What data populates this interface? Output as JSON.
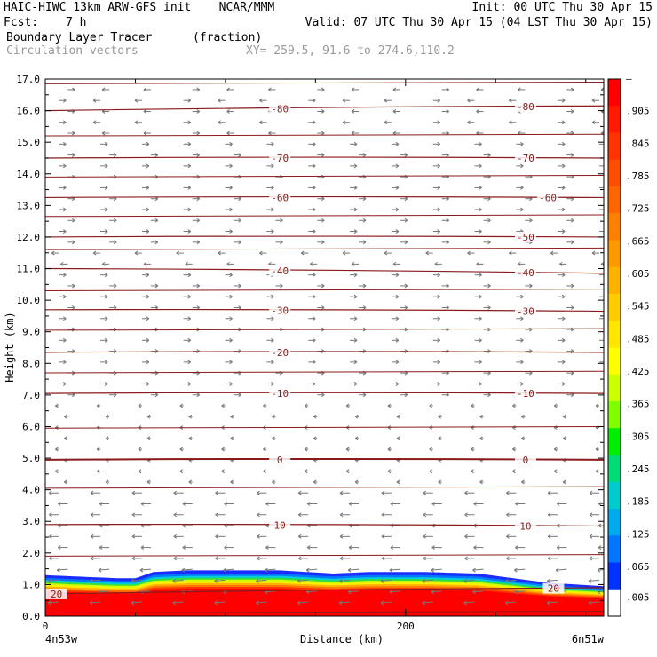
{
  "header": {
    "line1_left": "HAIC-HIWC 13km ARW-GFS init    NCAR/MMM",
    "line1_right": "Init: 00 UTC Thu 30 Apr 15",
    "line2_left_label": "Fcst:",
    "line2_left_value": "7 h",
    "line2_right": "Valid: 07 UTC Thu 30 Apr 15 (04 LST Thu 30 Apr 15)",
    "field_name": "Boundary Layer Tracer",
    "field_units": "(fraction)",
    "overlay_name": "Circulation vectors",
    "xy_text": "XY= 259.5, 91.6 to 274.6,110.2"
  },
  "chart_data": {
    "type": "cross-section",
    "ylabel": "Height (km)",
    "xlabel": "Distance (km)",
    "xlim": [
      0,
      310
    ],
    "ylim": [
      0,
      17
    ],
    "yticks": [
      "0.0",
      "1.0",
      "2.0",
      "3.0",
      "4.0",
      "5.0",
      "6.0",
      "7.0",
      "8.0",
      "9.0",
      "10.0",
      "11.0",
      "12.0",
      "13.0",
      "14.0",
      "15.0",
      "16.0",
      "17.0"
    ],
    "xticks": [
      {
        "value": 0,
        "label": "0"
      },
      {
        "value": 200,
        "label": "200"
      }
    ],
    "x_endpoints": {
      "left": "4n53w",
      "right": "6n51w"
    },
    "colorbar": {
      "labels": [
        "–",
        ".905",
        ".845",
        ".785",
        ".725",
        ".665",
        ".605",
        ".545",
        ".485",
        ".425",
        ".365",
        ".305",
        ".245",
        ".185",
        ".125",
        ".065",
        ".005"
      ],
      "colors": [
        "#ff0000",
        "#ff1a00",
        "#ff3300",
        "#ff4d00",
        "#ff6600",
        "#ff8000",
        "#ff9900",
        "#ffb300",
        "#ffcc00",
        "#ffe600",
        "#ffff00",
        "#ccff00",
        "#80ff00",
        "#00ee00",
        "#00dd77",
        "#00cccc",
        "#00aaee",
        "#0077ff",
        "#0033ff",
        "#ffffff"
      ]
    },
    "temperature_contours": [
      {
        "label": "-80",
        "km_left": 16.0,
        "km_right": 16.15,
        "label_positions": [
          0.42,
          0.86
        ]
      },
      {
        "label": "-70",
        "km_left": 14.5,
        "km_right": 14.5,
        "label_positions": [
          0.42,
          0.86
        ]
      },
      {
        "label": "-60",
        "km_left": 13.25,
        "km_right": 13.25,
        "label_positions": [
          0.42,
          0.9
        ]
      },
      {
        "label": "-50",
        "km_left": 12.0,
        "km_right": 12.0,
        "label_positions": [
          0.86
        ]
      },
      {
        "label": "-40",
        "km_left": 11.0,
        "km_right": 10.85,
        "label_positions": [
          0.42,
          0.86
        ]
      },
      {
        "label": "-30",
        "km_left": 9.7,
        "km_right": 9.65,
        "label_positions": [
          0.42,
          0.86
        ]
      },
      {
        "label": "-20",
        "km_left": 8.35,
        "km_right": 8.35,
        "label_positions": [
          0.42
        ]
      },
      {
        "label": "-10",
        "km_left": 7.05,
        "km_right": 7.05,
        "label_positions": [
          0.42,
          0.86
        ]
      },
      {
        "label": "0",
        "km_left": 4.95,
        "km_right": 4.95,
        "label_positions": [
          0.42,
          0.86
        ]
      },
      {
        "label": "10",
        "km_left": 2.9,
        "km_right": 2.85,
        "label_positions": [
          0.42,
          0.86
        ]
      },
      {
        "label": "20",
        "km_left": 0.7,
        "km_right": 0.9,
        "label_positions": [
          0.02,
          0.91
        ]
      }
    ],
    "extra_contours_km": [
      0.1,
      1.9,
      4.05,
      5.95,
      7.7,
      9.05,
      10.3,
      11.6,
      12.65,
      13.9,
      15.2,
      16.85
    ],
    "tracer_top_km": [
      [
        0,
        1.3
      ],
      [
        20,
        1.25
      ],
      [
        40,
        1.2
      ],
      [
        50,
        1.2
      ],
      [
        60,
        1.4
      ],
      [
        80,
        1.45
      ],
      [
        100,
        1.45
      ],
      [
        130,
        1.45
      ],
      [
        160,
        1.35
      ],
      [
        180,
        1.4
      ],
      [
        210,
        1.4
      ],
      [
        240,
        1.35
      ],
      [
        260,
        1.2
      ],
      [
        280,
        1.05
      ],
      [
        310,
        0.95
      ]
    ]
  }
}
